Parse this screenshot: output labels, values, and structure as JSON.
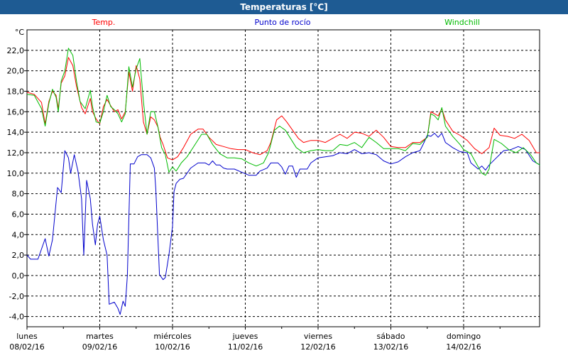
{
  "window": {
    "title": "Temperaturas [°C]"
  },
  "chart_data": {
    "type": "line",
    "title": "Temperaturas [°C]",
    "ylabel": "°C",
    "xlabel": "",
    "ylim": [
      -5,
      24
    ],
    "xlim": [
      0,
      7.1
    ],
    "grid": true,
    "legend_placement": "top",
    "yticks": [
      -4,
      -2,
      0,
      2,
      4,
      6,
      8,
      10,
      12,
      14,
      16,
      18,
      20,
      22
    ],
    "ytick_labels": [
      "-4,0",
      "-2,0",
      "0,0",
      "2,0",
      "4,0",
      "6,0",
      "8,0",
      "10,0",
      "12,0",
      "14,0",
      "16,0",
      "18,0",
      "20,0",
      "22,0"
    ],
    "x_ticks": [
      {
        "x": 0,
        "day": "lunes",
        "date": "08/02/16"
      },
      {
        "x": 1,
        "day": "martes",
        "date": "09/02/16"
      },
      {
        "x": 2,
        "day": "miércoles",
        "date": "10/02/16"
      },
      {
        "x": 3,
        "day": "jueves",
        "date": "11/02/16"
      },
      {
        "x": 4,
        "day": "viernes",
        "date": "12/02/16"
      },
      {
        "x": 5,
        "day": "sábado",
        "date": "13/02/16"
      },
      {
        "x": 6,
        "day": "domingo",
        "date": "14/02/16"
      }
    ],
    "series": [
      {
        "name": "Temp.",
        "color": "#ff0000",
        "points": [
          [
            0.0,
            17.9
          ],
          [
            0.1,
            17.7
          ],
          [
            0.2,
            16.9
          ],
          [
            0.25,
            14.8
          ],
          [
            0.3,
            17.0
          ],
          [
            0.35,
            18.0
          ],
          [
            0.4,
            17.6
          ],
          [
            0.43,
            16.3
          ],
          [
            0.47,
            18.8
          ],
          [
            0.52,
            19.5
          ],
          [
            0.57,
            21.3
          ],
          [
            0.63,
            20.5
          ],
          [
            0.68,
            18.5
          ],
          [
            0.75,
            16.4
          ],
          [
            0.8,
            15.8
          ],
          [
            0.87,
            17.3
          ],
          [
            0.9,
            16.0
          ],
          [
            0.95,
            15.3
          ],
          [
            1.0,
            14.8
          ],
          [
            1.05,
            16.5
          ],
          [
            1.1,
            17.2
          ],
          [
            1.15,
            16.6
          ],
          [
            1.2,
            16.0
          ],
          [
            1.25,
            16.2
          ],
          [
            1.3,
            15.3
          ],
          [
            1.35,
            16.0
          ],
          [
            1.4,
            19.9
          ],
          [
            1.45,
            18.0
          ],
          [
            1.5,
            20.5
          ],
          [
            1.55,
            19.2
          ],
          [
            1.6,
            15.0
          ],
          [
            1.65,
            13.8
          ],
          [
            1.7,
            15.5
          ],
          [
            1.75,
            15.2
          ],
          [
            1.8,
            14.5
          ],
          [
            1.83,
            13.5
          ],
          [
            1.87,
            12.8
          ],
          [
            1.93,
            11.5
          ],
          [
            2.0,
            11.3
          ],
          [
            2.07,
            11.6
          ],
          [
            2.15,
            12.5
          ],
          [
            2.25,
            13.8
          ],
          [
            2.35,
            14.3
          ],
          [
            2.42,
            14.3
          ],
          [
            2.5,
            13.5
          ],
          [
            2.6,
            12.8
          ],
          [
            2.7,
            12.6
          ],
          [
            2.8,
            12.4
          ],
          [
            2.9,
            12.3
          ],
          [
            3.0,
            12.3
          ],
          [
            3.1,
            12.0
          ],
          [
            3.2,
            11.8
          ],
          [
            3.3,
            12.2
          ],
          [
            3.35,
            13.0
          ],
          [
            3.43,
            15.2
          ],
          [
            3.5,
            15.6
          ],
          [
            3.57,
            15.0
          ],
          [
            3.65,
            14.2
          ],
          [
            3.73,
            13.4
          ],
          [
            3.8,
            13.0
          ],
          [
            3.9,
            13.2
          ],
          [
            4.0,
            13.2
          ],
          [
            4.1,
            13.0
          ],
          [
            4.2,
            13.4
          ],
          [
            4.3,
            13.8
          ],
          [
            4.4,
            13.4
          ],
          [
            4.5,
            14.0
          ],
          [
            4.6,
            13.9
          ],
          [
            4.7,
            13.6
          ],
          [
            4.8,
            14.2
          ],
          [
            4.9,
            13.5
          ],
          [
            5.0,
            12.6
          ],
          [
            5.1,
            12.5
          ],
          [
            5.2,
            12.5
          ],
          [
            5.3,
            13.0
          ],
          [
            5.4,
            13.0
          ],
          [
            5.5,
            13.5
          ],
          [
            5.55,
            16.0
          ],
          [
            5.6,
            15.8
          ],
          [
            5.65,
            15.6
          ],
          [
            5.7,
            16.3
          ],
          [
            5.75,
            15.2
          ],
          [
            5.85,
            14.1
          ],
          [
            5.95,
            13.7
          ],
          [
            6.05,
            13.2
          ],
          [
            6.15,
            12.4
          ],
          [
            6.25,
            11.9
          ],
          [
            6.35,
            12.5
          ],
          [
            6.42,
            14.4
          ],
          [
            6.5,
            13.7
          ],
          [
            6.6,
            13.6
          ],
          [
            6.7,
            13.4
          ],
          [
            6.8,
            13.8
          ],
          [
            6.9,
            13.2
          ],
          [
            7.0,
            12.0
          ],
          [
            7.05,
            12.0
          ]
        ]
      },
      {
        "name": "Punto de rocío",
        "color": "#0000cc",
        "points": [
          [
            0.0,
            2.0
          ],
          [
            0.05,
            1.6
          ],
          [
            0.15,
            1.6
          ],
          [
            0.25,
            3.6
          ],
          [
            0.3,
            1.9
          ],
          [
            0.35,
            3.5
          ],
          [
            0.42,
            8.6
          ],
          [
            0.47,
            8.1
          ],
          [
            0.52,
            12.2
          ],
          [
            0.57,
            11.5
          ],
          [
            0.6,
            10.0
          ],
          [
            0.65,
            11.8
          ],
          [
            0.7,
            10.2
          ],
          [
            0.75,
            7.5
          ],
          [
            0.78,
            2.0
          ],
          [
            0.82,
            9.3
          ],
          [
            0.87,
            7.5
          ],
          [
            0.9,
            5.0
          ],
          [
            0.94,
            3.0
          ],
          [
            0.97,
            5.0
          ],
          [
            1.0,
            5.8
          ],
          [
            1.05,
            3.5
          ],
          [
            1.1,
            2.0
          ],
          [
            1.13,
            -2.8
          ],
          [
            1.2,
            -2.6
          ],
          [
            1.25,
            -3.2
          ],
          [
            1.28,
            -3.8
          ],
          [
            1.32,
            -2.5
          ],
          [
            1.35,
            -3.0
          ],
          [
            1.38,
            0.0
          ],
          [
            1.42,
            10.9
          ],
          [
            1.47,
            10.9
          ],
          [
            1.52,
            11.6
          ],
          [
            1.57,
            11.8
          ],
          [
            1.65,
            11.8
          ],
          [
            1.7,
            11.5
          ],
          [
            1.75,
            10.5
          ],
          [
            1.77,
            8.5
          ],
          [
            1.82,
            0.1
          ],
          [
            1.87,
            -0.4
          ],
          [
            1.9,
            -0.2
          ],
          [
            1.95,
            2.0
          ],
          [
            2.0,
            4.8
          ],
          [
            2.02,
            8.2
          ],
          [
            2.05,
            9.0
          ],
          [
            2.1,
            9.4
          ],
          [
            2.15,
            9.5
          ],
          [
            2.25,
            10.5
          ],
          [
            2.35,
            11.0
          ],
          [
            2.45,
            11.0
          ],
          [
            2.5,
            10.8
          ],
          [
            2.55,
            11.2
          ],
          [
            2.6,
            10.8
          ],
          [
            2.65,
            10.8
          ],
          [
            2.7,
            10.5
          ],
          [
            2.75,
            10.4
          ],
          [
            2.85,
            10.4
          ],
          [
            2.95,
            10.1
          ],
          [
            3.05,
            9.8
          ],
          [
            3.15,
            9.8
          ],
          [
            3.2,
            10.2
          ],
          [
            3.3,
            10.5
          ],
          [
            3.35,
            11.0
          ],
          [
            3.45,
            11.0
          ],
          [
            3.5,
            10.6
          ],
          [
            3.55,
            9.9
          ],
          [
            3.6,
            10.7
          ],
          [
            3.65,
            10.7
          ],
          [
            3.7,
            9.6
          ],
          [
            3.75,
            10.4
          ],
          [
            3.85,
            10.4
          ],
          [
            3.9,
            11.0
          ],
          [
            4.0,
            11.5
          ],
          [
            4.1,
            11.6
          ],
          [
            4.2,
            11.7
          ],
          [
            4.3,
            12.0
          ],
          [
            4.4,
            11.9
          ],
          [
            4.5,
            12.3
          ],
          [
            4.6,
            11.9
          ],
          [
            4.7,
            12.0
          ],
          [
            4.8,
            11.8
          ],
          [
            4.9,
            11.2
          ],
          [
            5.0,
            10.9
          ],
          [
            5.1,
            11.1
          ],
          [
            5.2,
            11.6
          ],
          [
            5.3,
            12.0
          ],
          [
            5.4,
            12.2
          ],
          [
            5.45,
            12.9
          ],
          [
            5.5,
            13.7
          ],
          [
            5.55,
            13.6
          ],
          [
            5.6,
            13.9
          ],
          [
            5.65,
            13.5
          ],
          [
            5.7,
            13.9
          ],
          [
            5.75,
            13.0
          ],
          [
            5.85,
            12.5
          ],
          [
            5.95,
            12.1
          ],
          [
            6.05,
            12.0
          ],
          [
            6.1,
            11.0
          ],
          [
            6.2,
            10.4
          ],
          [
            6.25,
            10.7
          ],
          [
            6.3,
            10.3
          ],
          [
            6.35,
            10.8
          ],
          [
            6.45,
            11.5
          ],
          [
            6.55,
            12.2
          ],
          [
            6.65,
            12.3
          ],
          [
            6.75,
            12.6
          ],
          [
            6.85,
            12.3
          ],
          [
            6.95,
            11.2
          ],
          [
            7.05,
            10.8
          ]
        ]
      },
      {
        "name": "Windchill",
        "color": "#00bb00",
        "points": [
          [
            0.0,
            17.7
          ],
          [
            0.1,
            17.6
          ],
          [
            0.2,
            16.3
          ],
          [
            0.25,
            14.6
          ],
          [
            0.3,
            16.8
          ],
          [
            0.35,
            18.2
          ],
          [
            0.4,
            17.4
          ],
          [
            0.43,
            16.0
          ],
          [
            0.47,
            19.0
          ],
          [
            0.52,
            20.0
          ],
          [
            0.57,
            22.2
          ],
          [
            0.63,
            21.5
          ],
          [
            0.68,
            19.0
          ],
          [
            0.73,
            17.0
          ],
          [
            0.8,
            16.3
          ],
          [
            0.87,
            18.1
          ],
          [
            0.9,
            16.5
          ],
          [
            0.95,
            15.0
          ],
          [
            1.0,
            14.9
          ],
          [
            1.05,
            16.0
          ],
          [
            1.1,
            17.6
          ],
          [
            1.15,
            16.5
          ],
          [
            1.2,
            16.2
          ],
          [
            1.25,
            15.8
          ],
          [
            1.3,
            15.0
          ],
          [
            1.35,
            15.8
          ],
          [
            1.4,
            20.4
          ],
          [
            1.45,
            18.4
          ],
          [
            1.5,
            20.2
          ],
          [
            1.55,
            21.2
          ],
          [
            1.6,
            17.0
          ],
          [
            1.65,
            13.8
          ],
          [
            1.7,
            16.0
          ],
          [
            1.75,
            16.0
          ],
          [
            1.8,
            14.5
          ],
          [
            1.85,
            12.5
          ],
          [
            1.9,
            11.8
          ],
          [
            1.95,
            10.1
          ],
          [
            2.0,
            10.6
          ],
          [
            2.05,
            10.2
          ],
          [
            2.12,
            11.0
          ],
          [
            2.2,
            11.6
          ],
          [
            2.3,
            12.7
          ],
          [
            2.4,
            13.8
          ],
          [
            2.47,
            13.8
          ],
          [
            2.55,
            12.8
          ],
          [
            2.65,
            11.9
          ],
          [
            2.75,
            11.5
          ],
          [
            2.85,
            11.5
          ],
          [
            2.95,
            11.4
          ],
          [
            3.05,
            11.0
          ],
          [
            3.15,
            10.7
          ],
          [
            3.25,
            11.0
          ],
          [
            3.32,
            12.0
          ],
          [
            3.4,
            14.2
          ],
          [
            3.47,
            14.6
          ],
          [
            3.55,
            14.2
          ],
          [
            3.62,
            13.4
          ],
          [
            3.7,
            12.5
          ],
          [
            3.8,
            12.0
          ],
          [
            3.9,
            12.2
          ],
          [
            4.0,
            12.3
          ],
          [
            4.1,
            12.2
          ],
          [
            4.2,
            12.2
          ],
          [
            4.3,
            12.8
          ],
          [
            4.4,
            12.7
          ],
          [
            4.5,
            13.0
          ],
          [
            4.6,
            12.5
          ],
          [
            4.7,
            13.5
          ],
          [
            4.8,
            13.0
          ],
          [
            4.9,
            12.4
          ],
          [
            5.0,
            12.4
          ],
          [
            5.1,
            12.4
          ],
          [
            5.2,
            12.2
          ],
          [
            5.3,
            12.9
          ],
          [
            5.4,
            12.8
          ],
          [
            5.5,
            13.5
          ],
          [
            5.55,
            15.8
          ],
          [
            5.6,
            15.6
          ],
          [
            5.65,
            15.2
          ],
          [
            5.7,
            16.4
          ],
          [
            5.75,
            14.6
          ],
          [
            5.85,
            13.6
          ],
          [
            5.95,
            12.8
          ],
          [
            6.0,
            12.3
          ],
          [
            6.1,
            11.9
          ],
          [
            6.17,
            11.0
          ],
          [
            6.25,
            10.0
          ],
          [
            6.3,
            9.8
          ],
          [
            6.35,
            10.4
          ],
          [
            6.42,
            13.3
          ],
          [
            6.52,
            12.9
          ],
          [
            6.62,
            12.3
          ],
          [
            6.72,
            12.0
          ],
          [
            6.82,
            12.5
          ],
          [
            6.92,
            11.8
          ],
          [
            7.0,
            11.0
          ],
          [
            7.05,
            10.8
          ]
        ]
      }
    ]
  }
}
